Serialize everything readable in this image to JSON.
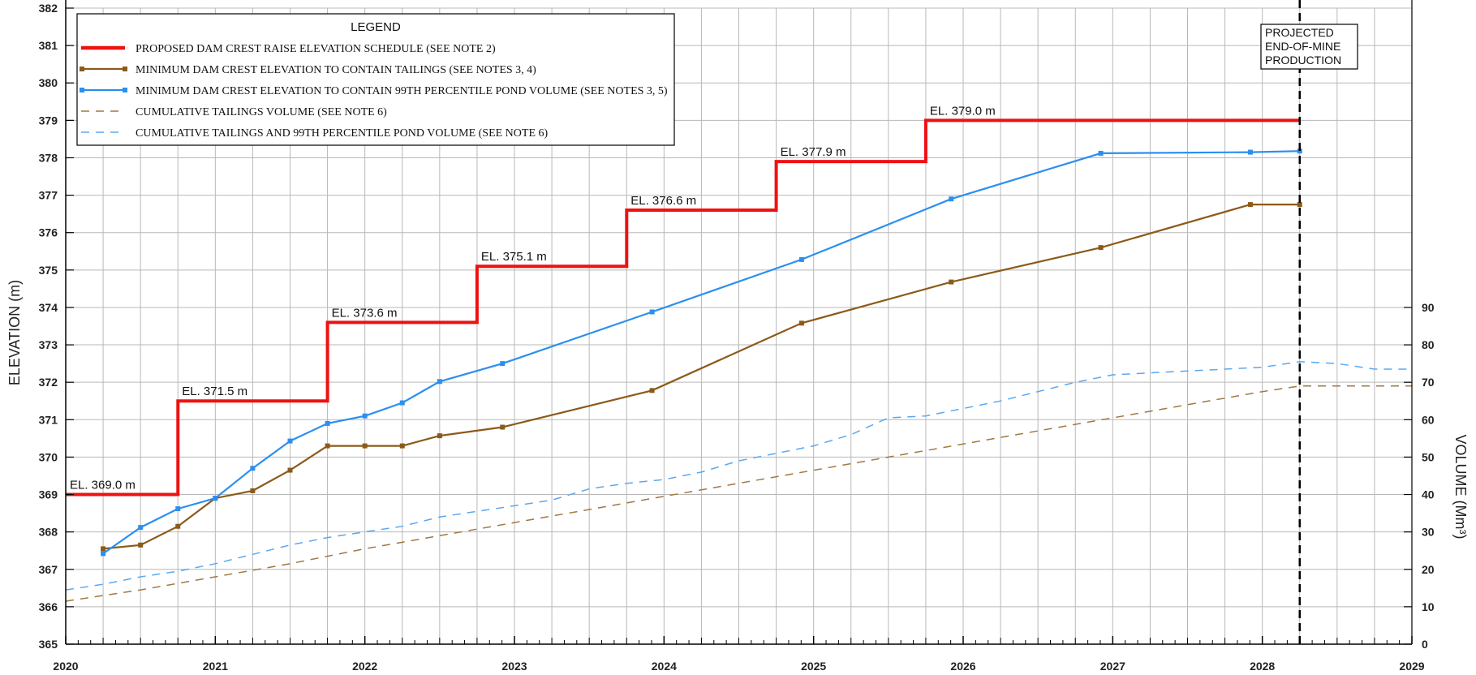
{
  "chart_data": {
    "type": "line",
    "xlim": [
      2020,
      2029
    ],
    "ylim": [
      365,
      382
    ],
    "y2lim": [
      0,
      90
    ],
    "grid": true,
    "legend_position": "top-left",
    "ylabel": "ELEVATION (m)",
    "y2label": "VOLUME (Mm³)",
    "x_ticks": [
      "2020",
      "2021",
      "2022",
      "2023",
      "2024",
      "2025",
      "2026",
      "2027",
      "2028",
      "2029"
    ],
    "y_ticks": [
      "365",
      "366",
      "367",
      "368",
      "369",
      "370",
      "371",
      "372",
      "373",
      "374",
      "375",
      "376",
      "377",
      "378",
      "379",
      "380",
      "381",
      "382"
    ],
    "y2_ticks": [
      "0",
      "10",
      "20",
      "30",
      "40",
      "50",
      "60",
      "70",
      "80",
      "90"
    ],
    "legend": {
      "title": "LEGEND",
      "entries": [
        "PROPOSED DAM CREST RAISE ELEVATION SCHEDULE (SEE NOTE 2)",
        "MINIMUM DAM CREST ELEVATION TO CONTAIN TAILINGS (SEE NOTES 3, 4)",
        "MINIMUM DAM CREST ELEVATION TO CONTAIN 99TH PERCENTILE POND VOLUME (SEE NOTES 3, 5)",
        "CUMULATIVE TAILINGS VOLUME (SEE NOTE 6)",
        "CUMULATIVE TAILINGS AND 99TH PERCENTILE POND VOLUME (SEE NOTE 6)"
      ]
    },
    "projection_line": {
      "x": 2028.25,
      "label": [
        "PROJECTED",
        "END-OF-MINE",
        "PRODUCTION"
      ]
    },
    "step_labels": [
      {
        "text": "EL. 369.0 m",
        "x": 2020.0,
        "y": 369.0
      },
      {
        "text": "EL. 371.5 m",
        "x": 2020.75,
        "y": 371.5
      },
      {
        "text": "EL. 373.6 m",
        "x": 2021.75,
        "y": 373.6
      },
      {
        "text": "EL. 375.1 m",
        "x": 2022.75,
        "y": 375.1
      },
      {
        "text": "EL. 376.6 m",
        "x": 2023.75,
        "y": 376.6
      },
      {
        "text": "EL. 377.9 m",
        "x": 2024.75,
        "y": 377.9
      },
      {
        "text": "EL. 379.0 m",
        "x": 2025.75,
        "y": 379.0
      }
    ],
    "series": [
      {
        "name": "PROPOSED DAM CREST RAISE ELEVATION SCHEDULE (SEE NOTE 2)",
        "axis": "left",
        "style": "step",
        "color": "#ee1111",
        "x": [
          2020.0,
          2020.75,
          2020.75,
          2021.75,
          2021.75,
          2022.75,
          2022.75,
          2023.75,
          2023.75,
          2024.75,
          2024.75,
          2025.75,
          2025.75,
          2028.25
        ],
        "y": [
          369.0,
          369.0,
          371.5,
          371.5,
          373.6,
          373.6,
          375.1,
          375.1,
          376.6,
          376.6,
          377.9,
          377.9,
          379.0,
          379.0
        ]
      },
      {
        "name": "MINIMUM DAM CREST ELEVATION TO CONTAIN TAILINGS (SEE NOTES 3, 4)",
        "axis": "left",
        "style": "solid-markers",
        "color": "#8b5a1a",
        "x": [
          2020.25,
          2020.5,
          2020.75,
          2021.0,
          2021.25,
          2021.5,
          2021.75,
          2022.0,
          2022.25,
          2022.5,
          2022.92,
          2023.92,
          2024.92,
          2025.92,
          2026.92,
          2027.92,
          2028.25
        ],
        "y": [
          367.55,
          367.65,
          368.15,
          368.9,
          369.1,
          369.65,
          370.3,
          370.3,
          370.3,
          370.57,
          370.8,
          371.78,
          373.58,
          374.68,
          375.6,
          376.75,
          376.75
        ]
      },
      {
        "name": "MINIMUM DAM CREST ELEVATION TO CONTAIN 99TH PERCENTILE POND VOLUME (SEE NOTES 3, 5)",
        "axis": "left",
        "style": "solid-markers",
        "color": "#2b8ff0",
        "x": [
          2020.25,
          2020.5,
          2020.75,
          2021.0,
          2021.25,
          2021.5,
          2021.75,
          2022.0,
          2022.25,
          2022.5,
          2022.92,
          2023.92,
          2024.92,
          2025.92,
          2026.92,
          2027.92,
          2028.25
        ],
        "y": [
          367.42,
          368.12,
          368.62,
          368.9,
          369.7,
          370.43,
          370.9,
          371.1,
          371.45,
          372.02,
          372.5,
          373.88,
          375.28,
          376.9,
          378.12,
          378.15,
          378.18
        ]
      },
      {
        "name": "CUMULATIVE TAILINGS VOLUME (SEE NOTE 6)",
        "axis": "right",
        "style": "dashed",
        "color": "#a07840",
        "x": [
          2020.0,
          2020.5,
          2021.0,
          2021.5,
          2022.0,
          2022.5,
          2023.0,
          2023.5,
          2024.0,
          2024.5,
          2025.0,
          2025.5,
          2026.0,
          2026.5,
          2027.0,
          2027.5,
          2028.0,
          2028.25,
          2029.0
        ],
        "y": [
          11.5,
          14.5,
          18.0,
          21.5,
          25.5,
          29.0,
          32.5,
          36.0,
          39.5,
          43.0,
          46.5,
          50.0,
          53.5,
          57.0,
          60.5,
          64.0,
          67.5,
          69.0,
          69.0
        ]
      },
      {
        "name": "CUMULATIVE TAILINGS AND 99TH PERCENTILE POND VOLUME (SEE NOTE 6)",
        "axis": "right",
        "style": "dashed",
        "color": "#5aa8f0",
        "x": [
          2020.0,
          2020.25,
          2020.5,
          2020.75,
          2021.0,
          2021.25,
          2021.5,
          2021.75,
          2022.0,
          2022.25,
          2022.5,
          2022.75,
          2023.0,
          2023.25,
          2023.5,
          2023.75,
          2024.0,
          2024.25,
          2024.5,
          2024.75,
          2025.0,
          2025.25,
          2025.5,
          2025.75,
          2026.0,
          2026.25,
          2026.5,
          2026.75,
          2027.0,
          2027.25,
          2027.5,
          2027.75,
          2028.0,
          2028.25,
          2028.5,
          2028.75,
          2029.0
        ],
        "y": [
          14.5,
          16.0,
          18.0,
          19.5,
          21.5,
          24.0,
          26.5,
          28.5,
          30.0,
          31.5,
          34.0,
          35.5,
          37.0,
          38.5,
          41.5,
          43.0,
          44.0,
          46.0,
          49.0,
          51.0,
          53.0,
          56.0,
          60.5,
          61.0,
          63.0,
          65.0,
          67.5,
          70.0,
          72.0,
          72.5,
          73.0,
          73.5,
          74.0,
          75.5,
          75.0,
          73.5,
          73.5
        ]
      }
    ]
  }
}
